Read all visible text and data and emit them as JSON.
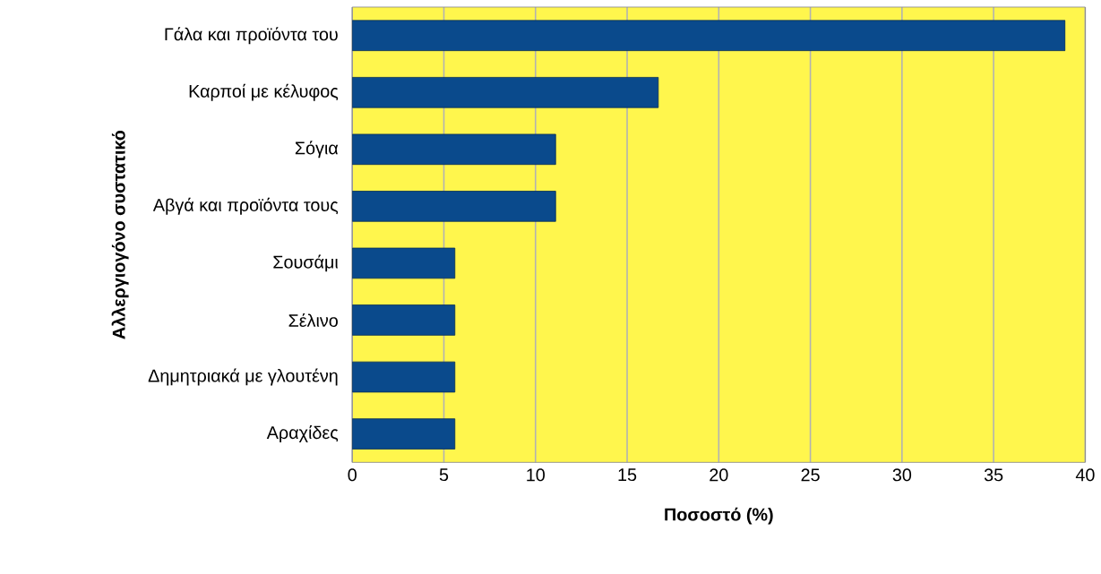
{
  "chart_data": {
    "type": "bar",
    "orientation": "horizontal",
    "xlabel": "Ποσοστό (%)",
    "ylabel": "Αλλεργιογόνο συστατικό",
    "categories": [
      "Γάλα και προϊόντα του",
      "Καρποί με κέλυφος",
      "Σόγια",
      "Αβγά και προϊόντα τους",
      "Σουσάμι",
      "Σέλινο",
      "Δημητριακά με γλουτένη",
      "Αραχίδες"
    ],
    "values": [
      38.9,
      16.7,
      11.1,
      11.1,
      5.6,
      5.6,
      5.6,
      5.6
    ],
    "color": "#0a4a8c",
    "xlim": [
      0,
      40
    ],
    "xticks": [
      0,
      5,
      10,
      15,
      20,
      25,
      30,
      35,
      40
    ],
    "grid": "x"
  }
}
